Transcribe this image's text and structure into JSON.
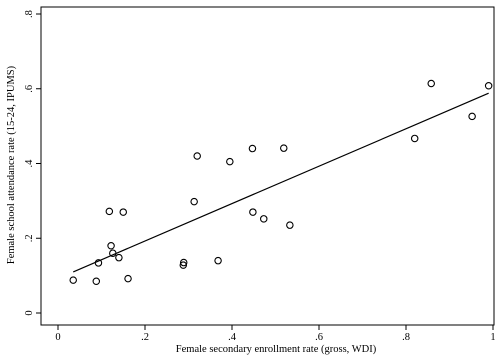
{
  "chart_data": {
    "type": "scatter",
    "title": "",
    "xlabel": "Female secondary enrollment rate (gross, WDI)",
    "ylabel": "Female school attendance rate (15-24, IPUMS)",
    "xlim": [
      0,
      1
    ],
    "ylim": [
      0,
      0.8
    ],
    "xticks": [
      {
        "value": 0,
        "label": "0"
      },
      {
        "value": 0.2,
        "label": ".2"
      },
      {
        "value": 0.4,
        "label": ".4"
      },
      {
        "value": 0.6,
        "label": ".6"
      },
      {
        "value": 0.8,
        "label": ".8"
      },
      {
        "value": 1,
        "label": "1"
      }
    ],
    "yticks": [
      {
        "value": 0,
        "label": "0"
      },
      {
        "value": 0.2,
        "label": ".2"
      },
      {
        "value": 0.4,
        "label": ".4"
      },
      {
        "value": 0.6,
        "label": ".6"
      },
      {
        "value": 0.8,
        "label": ".8"
      }
    ],
    "grid": false,
    "legend": "none",
    "points": [
      {
        "x": 0.035,
        "y": 0.088
      },
      {
        "x": 0.088,
        "y": 0.085
      },
      {
        "x": 0.093,
        "y": 0.134
      },
      {
        "x": 0.118,
        "y": 0.272
      },
      {
        "x": 0.122,
        "y": 0.18
      },
      {
        "x": 0.126,
        "y": 0.16
      },
      {
        "x": 0.14,
        "y": 0.148
      },
      {
        "x": 0.15,
        "y": 0.27
      },
      {
        "x": 0.161,
        "y": 0.092
      },
      {
        "x": 0.288,
        "y": 0.128
      },
      {
        "x": 0.289,
        "y": 0.135
      },
      {
        "x": 0.313,
        "y": 0.298
      },
      {
        "x": 0.32,
        "y": 0.42
      },
      {
        "x": 0.368,
        "y": 0.14
      },
      {
        "x": 0.395,
        "y": 0.405
      },
      {
        "x": 0.447,
        "y": 0.44
      },
      {
        "x": 0.448,
        "y": 0.27
      },
      {
        "x": 0.473,
        "y": 0.252
      },
      {
        "x": 0.519,
        "y": 0.441
      },
      {
        "x": 0.533,
        "y": 0.235
      },
      {
        "x": 0.82,
        "y": 0.467
      },
      {
        "x": 0.858,
        "y": 0.614
      },
      {
        "x": 0.952,
        "y": 0.526
      },
      {
        "x": 0.99,
        "y": 0.608
      }
    ],
    "fit_line": {
      "x": [
        0.035,
        0.99
      ],
      "y": [
        0.11,
        0.588
      ]
    }
  }
}
